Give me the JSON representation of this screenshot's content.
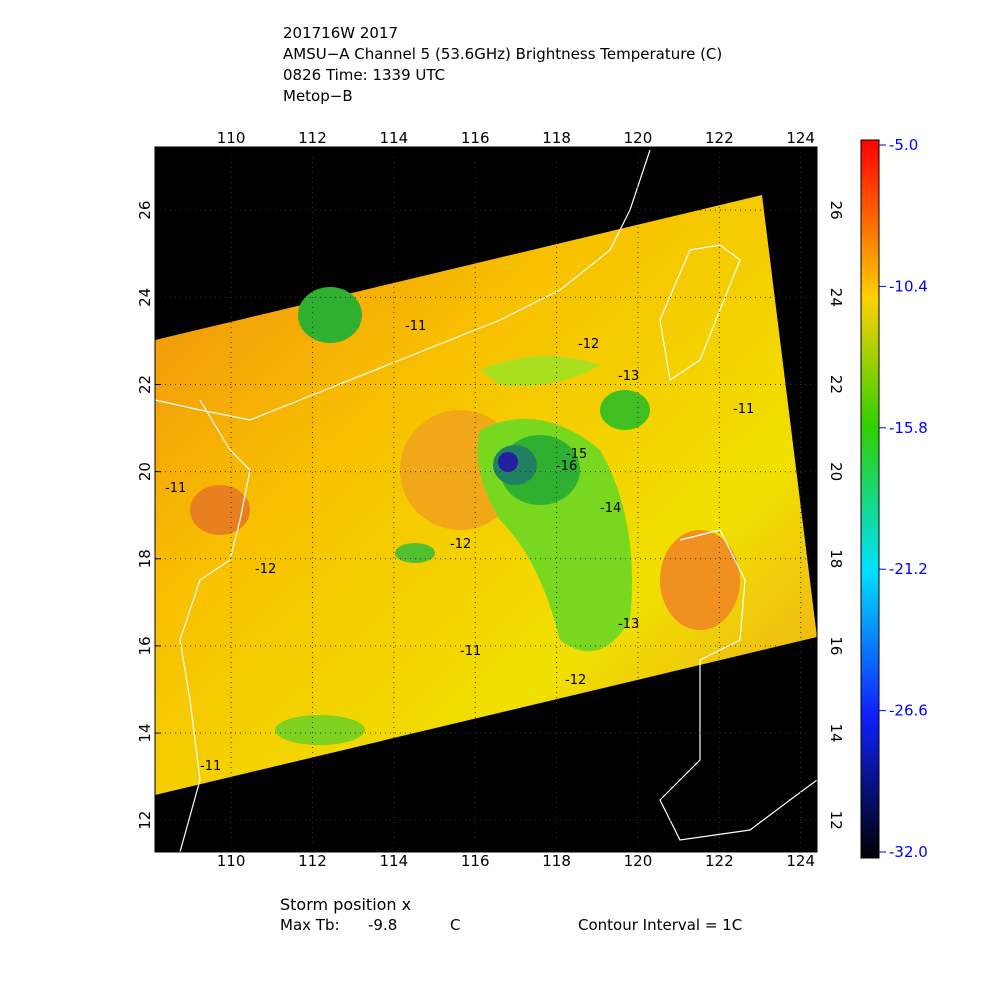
{
  "header": {
    "lines": [
      "201716W 2017",
      "AMSU−A Channel 5 (53.6GHz) Brightness Temperature (C)",
      "0826 Time: 1339 UTC",
      "Metop−B"
    ]
  },
  "map": {
    "xlim": [
      108.13,
      124.4
    ],
    "ylim": [
      11.27,
      27.45
    ],
    "xticks": [
      110,
      112,
      114,
      116,
      118,
      120,
      122,
      124
    ],
    "yticks": [
      12,
      14,
      16,
      18,
      20,
      22,
      24,
      26
    ],
    "contour_labels": [
      -12,
      -13,
      -11,
      -15,
      -16,
      -14,
      -12,
      -12,
      -11,
      -12,
      -13,
      -11,
      -11,
      -11
    ]
  },
  "colorbar": {
    "range": [
      -32,
      -5
    ],
    "ticks": [
      {
        "value": -5,
        "label": "-5.0"
      },
      {
        "value": -10.4,
        "label": "-10.4"
      },
      {
        "value": -15.8,
        "label": "-15.8"
      },
      {
        "value": -21.2,
        "label": "-21.2"
      },
      {
        "value": -26.6,
        "label": "-26.6"
      },
      {
        "value": -32,
        "label": "-32.0"
      }
    ]
  },
  "footer": {
    "storm_position": "Storm position x",
    "max_tb_label": "Max Tb:",
    "max_tb_value": -9.8,
    "max_tb_unit": "C",
    "contour_interval": "Contour Interval = 1C"
  }
}
